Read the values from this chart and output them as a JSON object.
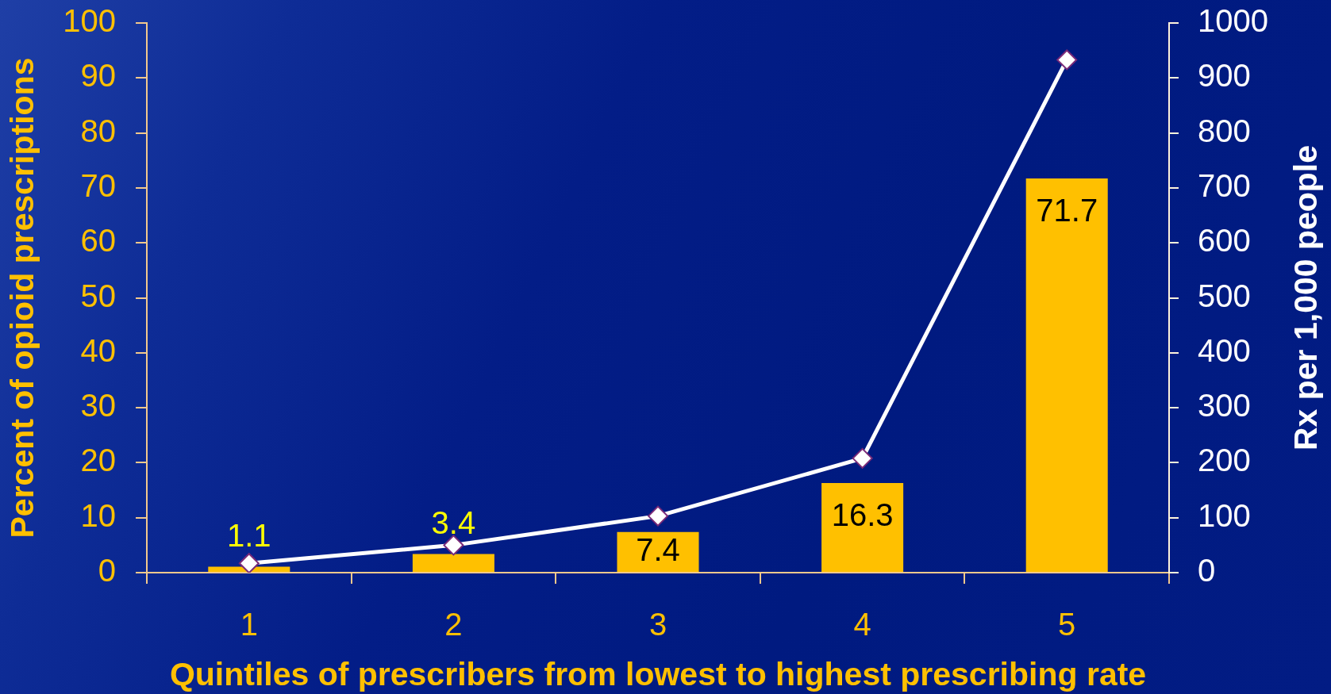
{
  "chart_data": {
    "type": "bar",
    "xlabel": "Quintiles of prescribers from lowest to highest prescribing rate",
    "ylabel": "Percent of opioid prescriptions",
    "y2label": "Rx per 1,000 people",
    "categories": [
      "1",
      "2",
      "3",
      "4",
      "5"
    ],
    "series": [
      {
        "color": "#ffc000",
        "values": [
          1.1,
          3.4,
          7.4,
          16.3,
          71.7
        ],
        "value_labels": [
          "1.1",
          "3.4",
          "7.4",
          "16.3",
          "71.7"
        ]
      },
      {
        "type": "line",
        "axis": "y2",
        "color": "#ffffff",
        "values": [
          17,
          50,
          103,
          208,
          933
        ]
      }
    ],
    "ylim": [
      0,
      100
    ],
    "yticks": [
      0,
      10,
      20,
      30,
      40,
      50,
      60,
      70,
      80,
      90,
      100
    ],
    "y2lim": [
      0,
      1000
    ],
    "y2ticks": [
      0,
      100,
      200,
      300,
      400,
      500,
      600,
      700,
      800,
      900,
      1000
    ],
    "marker": "diamond"
  }
}
